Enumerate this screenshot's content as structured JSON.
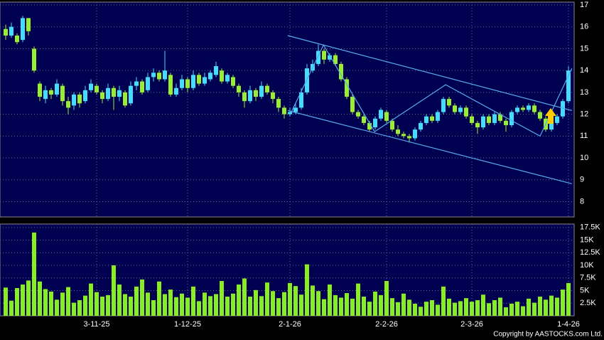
{
  "chart_data": {
    "type": "candlestick",
    "copyright": "Copyright by AASTOCKS.com Ltd.",
    "up_color": "#44ddff",
    "down_color": "#99ee33",
    "volume_color": "#88ee22",
    "trend_color": "#55aaee",
    "xticks": [
      {
        "value": 16,
        "label": "3-11-25"
      },
      {
        "value": 32,
        "label": "1-12-25"
      },
      {
        "value": 50,
        "label": "2-1-26"
      },
      {
        "value": 67,
        "label": "2-2-26"
      },
      {
        "value": 82,
        "label": "2-3-26"
      },
      {
        "value": 99,
        "label": "1-4-26"
      }
    ],
    "ylim": [
      7.3,
      17
    ],
    "yticks": [
      8,
      9,
      10,
      11,
      12,
      13,
      14,
      15,
      16,
      17
    ],
    "y2lim": [
      0,
      17900
    ],
    "y2ticks": [
      {
        "value": 2500,
        "label": "2.5K"
      },
      {
        "value": 5000,
        "label": "5K"
      },
      {
        "value": 7500,
        "label": "7.5K"
      },
      {
        "value": 10000,
        "label": "10K"
      },
      {
        "value": 12500,
        "label": "12.5K"
      },
      {
        "value": 15000,
        "label": "15K"
      },
      {
        "value": 17500,
        "label": "17.5K"
      }
    ],
    "grid": true,
    "ohlc": [
      [
        15.9,
        16.1,
        15.4,
        15.6
      ],
      [
        15.6,
        16.2,
        15.5,
        16.0
      ],
      [
        15.6,
        15.7,
        15.2,
        15.3
      ],
      [
        15.4,
        16.5,
        15.3,
        16.4
      ],
      [
        16.4,
        16.4,
        15.6,
        15.8
      ],
      [
        15.0,
        15.1,
        13.9,
        14.0
      ],
      [
        13.4,
        13.5,
        12.6,
        12.8
      ],
      [
        12.7,
        13.3,
        12.5,
        13.1
      ],
      [
        13.1,
        13.2,
        12.7,
        12.9
      ],
      [
        12.9,
        13.6,
        12.8,
        13.4
      ],
      [
        13.3,
        13.4,
        12.4,
        12.6
      ],
      [
        12.6,
        12.8,
        12.0,
        12.3
      ],
      [
        12.4,
        13.0,
        12.2,
        12.9
      ],
      [
        12.9,
        13.0,
        12.3,
        12.5
      ],
      [
        12.6,
        13.3,
        12.5,
        13.1
      ],
      [
        13.1,
        13.6,
        13.0,
        13.4
      ],
      [
        13.3,
        13.4,
        12.9,
        13.0
      ],
      [
        13.0,
        13.1,
        12.5,
        12.7
      ],
      [
        12.7,
        13.4,
        12.6,
        13.2
      ],
      [
        13.2,
        13.3,
        12.2,
        12.8
      ],
      [
        12.8,
        13.3,
        12.6,
        13.1
      ],
      [
        13.0,
        13.1,
        12.3,
        12.4
      ],
      [
        12.5,
        13.5,
        12.4,
        13.3
      ],
      [
        13.3,
        13.7,
        13.1,
        13.5
      ],
      [
        13.5,
        13.6,
        12.9,
        13.0
      ],
      [
        13.1,
        13.9,
        13.0,
        13.7
      ],
      [
        13.7,
        14.1,
        13.5,
        13.9
      ],
      [
        13.9,
        14.0,
        13.5,
        13.6
      ],
      [
        13.6,
        14.9,
        13.5,
        14.0
      ],
      [
        13.8,
        13.9,
        12.8,
        12.9
      ],
      [
        12.9,
        13.4,
        12.8,
        13.2
      ],
      [
        13.2,
        13.8,
        13.1,
        13.6
      ],
      [
        13.6,
        13.7,
        13.0,
        13.2
      ],
      [
        13.2,
        14.0,
        13.1,
        13.8
      ],
      [
        13.8,
        13.9,
        13.3,
        13.4
      ],
      [
        13.4,
        13.9,
        13.3,
        13.7
      ],
      [
        13.6,
        14.0,
        13.5,
        13.9
      ],
      [
        13.8,
        14.4,
        13.7,
        14.2
      ],
      [
        14.0,
        14.1,
        13.4,
        13.5
      ],
      [
        13.5,
        13.9,
        13.4,
        13.8
      ],
      [
        13.7,
        13.8,
        13.2,
        13.3
      ],
      [
        13.3,
        13.4,
        12.8,
        13.0
      ],
      [
        13.0,
        13.1,
        12.3,
        12.6
      ],
      [
        12.6,
        13.3,
        12.5,
        13.1
      ],
      [
        13.1,
        13.2,
        12.6,
        12.8
      ],
      [
        12.8,
        13.5,
        12.7,
        13.3
      ],
      [
        13.3,
        13.4,
        12.9,
        13.0
      ],
      [
        13.0,
        13.1,
        12.5,
        12.7
      ],
      [
        12.7,
        12.8,
        12.1,
        12.3
      ],
      [
        12.3,
        12.4,
        11.8,
        12.0
      ],
      [
        12.0,
        12.3,
        11.9,
        12.1
      ],
      [
        12.1,
        12.5,
        12.0,
        12.3
      ],
      [
        12.3,
        13.2,
        12.2,
        13.0
      ],
      [
        13.0,
        14.3,
        12.9,
        14.1
      ],
      [
        14.0,
        14.5,
        13.9,
        14.3
      ],
      [
        14.3,
        15.2,
        14.2,
        14.9
      ],
      [
        14.9,
        15.0,
        14.3,
        14.5
      ],
      [
        14.5,
        14.8,
        14.4,
        14.7
      ],
      [
        14.7,
        14.8,
        14.2,
        14.3
      ],
      [
        14.3,
        14.4,
        13.5,
        13.6
      ],
      [
        13.6,
        13.7,
        12.7,
        12.8
      ],
      [
        12.8,
        12.9,
        12.0,
        12.1
      ],
      [
        12.1,
        12.2,
        11.8,
        11.9
      ],
      [
        11.9,
        12.0,
        11.5,
        11.6
      ],
      [
        11.6,
        11.7,
        11.2,
        11.3
      ],
      [
        11.4,
        11.9,
        11.3,
        11.8
      ],
      [
        11.8,
        12.3,
        11.7,
        12.2
      ],
      [
        12.1,
        12.2,
        11.6,
        11.7
      ],
      [
        11.7,
        11.8,
        11.2,
        11.3
      ],
      [
        11.3,
        11.5,
        11.0,
        11.1
      ],
      [
        11.1,
        11.2,
        10.9,
        11.0
      ],
      [
        11.0,
        11.1,
        10.7,
        10.9
      ],
      [
        10.9,
        11.4,
        10.8,
        11.3
      ],
      [
        11.3,
        11.7,
        11.2,
        11.6
      ],
      [
        11.6,
        12.0,
        11.5,
        11.9
      ],
      [
        11.9,
        12.0,
        11.6,
        11.7
      ],
      [
        11.7,
        12.2,
        11.6,
        12.1
      ],
      [
        12.1,
        12.8,
        12.0,
        12.7
      ],
      [
        12.7,
        12.8,
        12.3,
        12.4
      ],
      [
        12.4,
        12.5,
        12.0,
        12.1
      ],
      [
        12.1,
        12.4,
        12.0,
        12.3
      ],
      [
        12.3,
        12.4,
        11.8,
        11.9
      ],
      [
        11.9,
        12.0,
        11.5,
        11.6
      ],
      [
        11.6,
        11.7,
        11.1,
        11.4
      ],
      [
        11.4,
        12.0,
        11.3,
        11.9
      ],
      [
        11.9,
        12.0,
        11.5,
        11.6
      ],
      [
        11.6,
        12.1,
        11.5,
        12.0
      ],
      [
        12.0,
        12.1,
        11.6,
        11.7
      ],
      [
        11.7,
        11.8,
        11.2,
        11.5
      ],
      [
        11.5,
        12.2,
        11.4,
        12.1
      ],
      [
        12.1,
        12.4,
        12.0,
        12.3
      ],
      [
        12.3,
        12.4,
        12.1,
        12.2
      ],
      [
        12.2,
        12.5,
        12.1,
        12.4
      ],
      [
        12.4,
        12.5,
        12.0,
        12.1
      ],
      [
        12.1,
        12.2,
        11.7,
        11.8
      ],
      [
        11.8,
        11.9,
        11.2,
        11.3
      ],
      [
        11.3,
        11.7,
        11.2,
        11.6
      ],
      [
        11.6,
        12.0,
        11.5,
        11.9
      ],
      [
        11.9,
        12.7,
        11.8,
        12.6
      ],
      [
        12.6,
        14.2,
        12.5,
        14.0
      ]
    ],
    "volume": [
      5600,
      3000,
      5500,
      6200,
      7000,
      16500,
      6800,
      5300,
      4800,
      3200,
      4600,
      5700,
      2600,
      3100,
      4000,
      6400,
      4700,
      3800,
      4100,
      10000,
      6200,
      4300,
      3800,
      5800,
      7200,
      4600,
      3100,
      6800,
      4300,
      5200,
      3700,
      4400,
      3600,
      5800,
      2900,
      4600,
      3900,
      4300,
      6900,
      3800,
      4400,
      6200,
      7400,
      3800,
      5100,
      3900,
      6600,
      4900,
      3500,
      4700,
      6500,
      5900,
      4200,
      10200,
      6000,
      4900,
      3300,
      6200,
      4100,
      3600,
      4500,
      3400,
      6400,
      3800,
      2800,
      4800,
      4100,
      6900,
      3500,
      2700,
      4400,
      3200,
      2400,
      1800,
      2800,
      3100,
      2200,
      5800,
      3400,
      2600,
      2900,
      3500,
      2800,
      3100,
      4200,
      2500,
      3100,
      3600,
      1700,
      2400,
      2800,
      1900,
      3400,
      2600,
      3800,
      3200,
      4000,
      3600,
      5200,
      6500
    ],
    "trendlines": [
      {
        "x": [
          49.6,
          99.6
        ],
        "y": [
          15.6,
          12.17
        ]
      },
      {
        "x": [
          49.6,
          99.6
        ],
        "y": [
          12.17,
          8.82
        ]
      },
      {
        "x": [
          50.25,
          55.9,
          64.9,
          77.4,
          94,
          99.6
        ],
        "y": [
          12.1,
          15.17,
          11.2,
          13.35,
          11.0,
          14.1
        ]
      }
    ]
  }
}
